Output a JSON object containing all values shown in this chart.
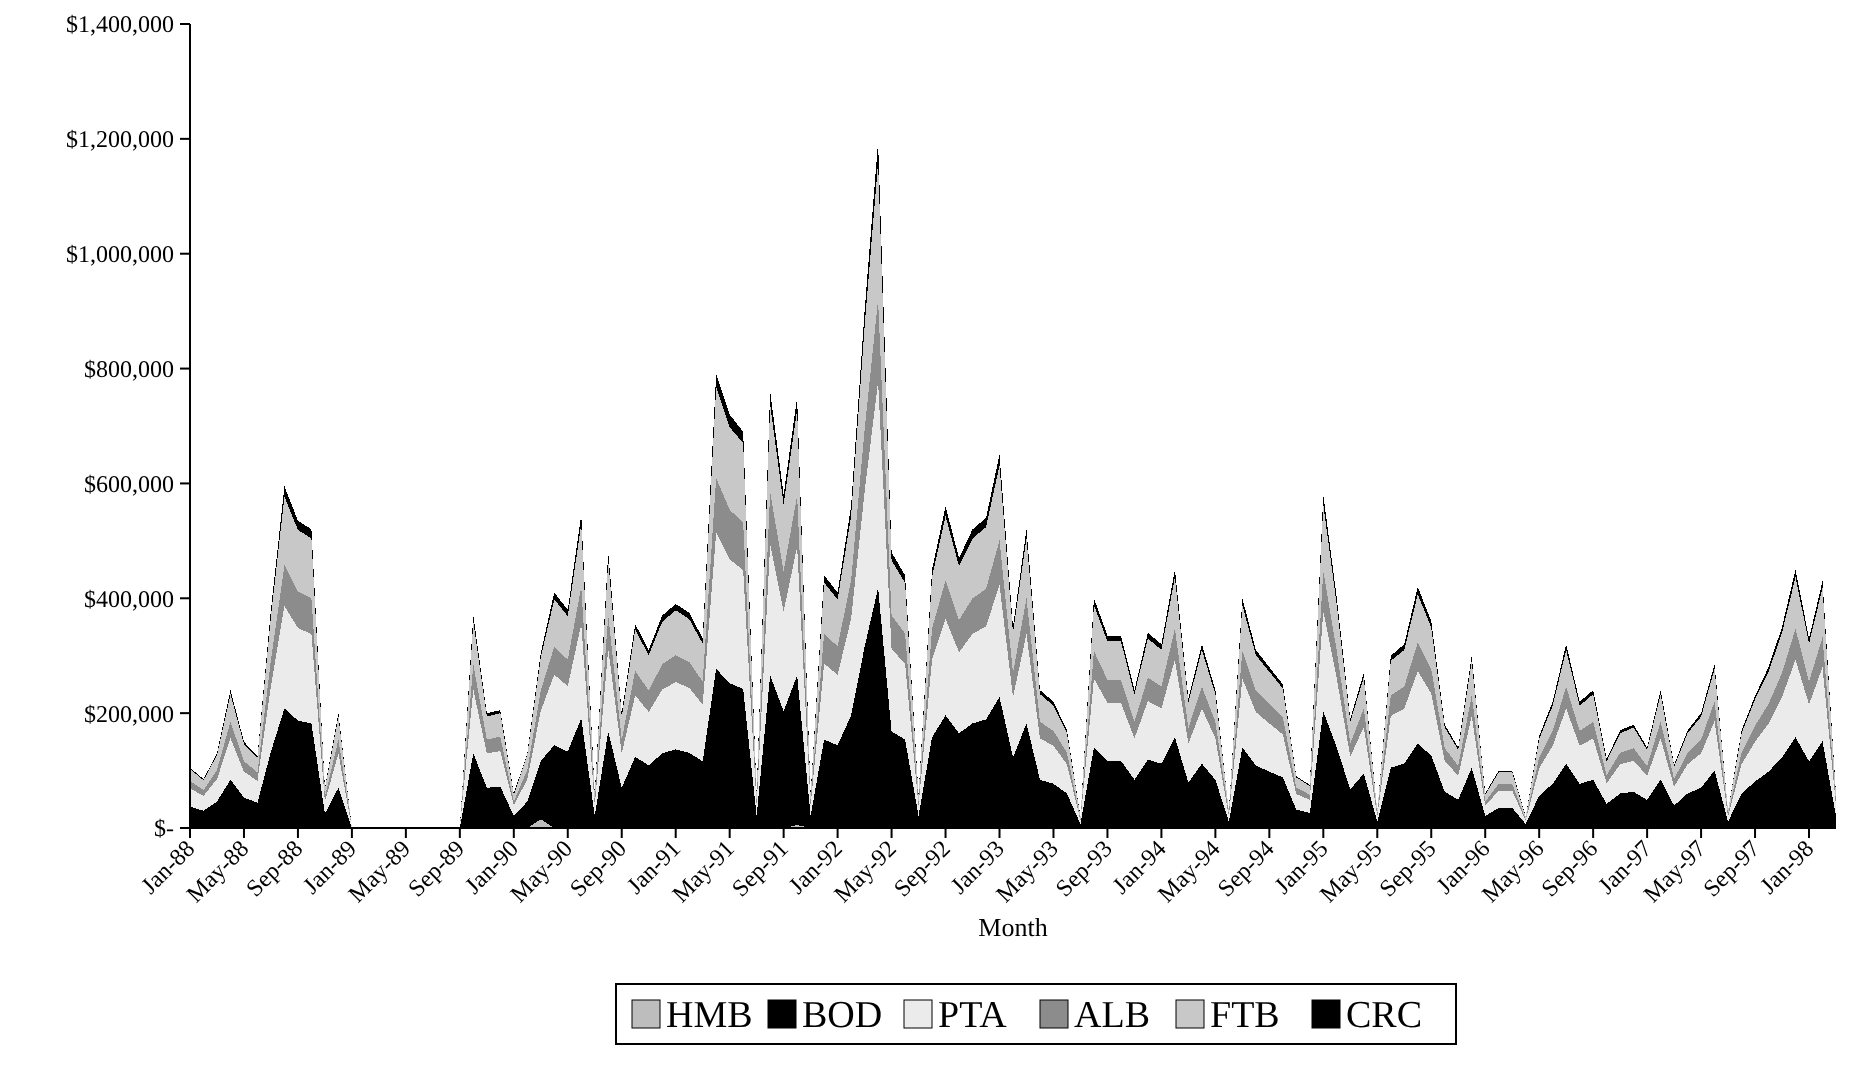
{
  "chart_data": {
    "type": "area",
    "stacked": true,
    "xlabel": "Month",
    "legend": "bottom",
    "grid": false,
    "categories": [
      "Jan-88",
      null,
      null,
      null,
      "May-88",
      null,
      null,
      null,
      "Sep-88",
      null,
      null,
      null,
      "Jan-89",
      null,
      null,
      null,
      "May-89",
      null,
      null,
      null,
      "Sep-89",
      null,
      null,
      null,
      "Jan-90",
      null,
      null,
      null,
      "May-90",
      null,
      null,
      null,
      "Sep-90",
      null,
      null,
      null,
      "Jan-91",
      null,
      null,
      null,
      "May-91",
      null,
      null,
      null,
      "Sep-91",
      null,
      null,
      null,
      "Jan-92",
      null,
      null,
      null,
      "May-92",
      null,
      null,
      null,
      "Sep-92",
      null,
      null,
      null,
      "Jan-93",
      null,
      null,
      null,
      "May-93",
      null,
      null,
      null,
      "Sep-93",
      null,
      null,
      null,
      "Jan-94",
      null,
      null,
      null,
      "May-94",
      null,
      null,
      null,
      "Sep-94",
      null,
      null,
      null,
      "Jan-95",
      null,
      null,
      null,
      "May-95",
      null,
      null,
      null,
      "Sep-95",
      null,
      null,
      null,
      "Jan-96",
      null,
      null,
      null,
      "May-96",
      null,
      null,
      null,
      "Sep-96",
      null,
      null,
      null,
      "Jan-97",
      null,
      null,
      null,
      "May-97",
      null,
      null,
      null,
      "Sep-97",
      null,
      null,
      null,
      "Jan-98",
      null,
      null
    ],
    "ylim": [
      0,
      1400000
    ],
    "yticks": [
      {
        "value": 0,
        "label": "$-"
      },
      {
        "value": 200000,
        "label": "$200,000"
      },
      {
        "value": 400000,
        "label": "$400,000"
      },
      {
        "value": 600000,
        "label": "$600,000"
      },
      {
        "value": 800000,
        "label": "$800,000"
      },
      {
        "value": 1000000,
        "label": "$1,000,000"
      },
      {
        "value": 1200000,
        "label": "$1,200,000"
      },
      {
        "value": 1400000,
        "label": "$1,400,000"
      }
    ],
    "series": [
      {
        "name": "HMB",
        "color": "#bdbdbd",
        "values": [
          0,
          0,
          0,
          0,
          0,
          0,
          0,
          0,
          0,
          0,
          0,
          0,
          0,
          0,
          0,
          0,
          0,
          0,
          0,
          0,
          0,
          0,
          0,
          0,
          0,
          0,
          15000,
          0,
          0,
          0,
          0,
          0,
          0,
          0,
          0,
          0,
          0,
          0,
          0,
          0,
          0,
          0,
          0,
          0,
          0,
          5000,
          0,
          0,
          0,
          0,
          0,
          0,
          0,
          0,
          0,
          0,
          0,
          0,
          0,
          0,
          0,
          0,
          0,
          0,
          0,
          0,
          0,
          0,
          0,
          0,
          0,
          0,
          0,
          0,
          0,
          0,
          0,
          0,
          0,
          0,
          0,
          0,
          0,
          0,
          0,
          0,
          0,
          0,
          0,
          0,
          0,
          0,
          0,
          0,
          0,
          0,
          0,
          0,
          0,
          0,
          0,
          0,
          0,
          0,
          0,
          0,
          0,
          0,
          0,
          0,
          0,
          0,
          0,
          0,
          0,
          0,
          0,
          0,
          0,
          0,
          0,
          0,
          0
        ]
      },
      {
        "name": "BOD",
        "color": "#000000",
        "values": [
          37000,
          30000,
          46000,
          84000,
          53000,
          44000,
          133000,
          208000,
          187000,
          182000,
          25000,
          70000,
          0,
          0,
          0,
          0,
          0,
          0,
          0,
          0,
          0,
          130000,
          70000,
          72000,
          21000,
          46000,
          102000,
          144000,
          133000,
          191000,
          21000,
          168000,
          70000,
          124000,
          109000,
          130000,
          137000,
          131000,
          116000,
          277000,
          252000,
          242000,
          21000,
          266000,
          203000,
          261000,
          21000,
          154000,
          144000,
          196000,
          315000,
          418000,
          168000,
          154000,
          21000,
          158000,
          196000,
          165000,
          182000,
          189000,
          228000,
          123000,
          182000,
          84000,
          77000,
          60000,
          7000,
          140000,
          117000,
          117000,
          84000,
          119000,
          112000,
          158000,
          79000,
          112000,
          84000,
          11000,
          140000,
          109000,
          98000,
          88000,
          32000,
          26000,
          203000,
          140000,
          67000,
          95000,
          11000,
          105000,
          112000,
          147000,
          126000,
          63000,
          49000,
          105000,
          21000,
          35000,
          35000,
          7000,
          56000,
          77000,
          112000,
          77000,
          84000,
          42000,
          60000,
          63000,
          49000,
          84000,
          39000,
          60000,
          70000,
          100000,
          11000,
          60000,
          81000,
          98000,
          123000,
          158000,
          116000,
          151000,
          21000
        ]
      },
      {
        "name": "PTA",
        "color": "#ebebeb",
        "values": [
          32000,
          26000,
          39000,
          72000,
          45000,
          38000,
          114000,
          179000,
          161000,
          156000,
          21000,
          60000,
          0,
          0,
          0,
          0,
          0,
          0,
          0,
          0,
          0,
          111000,
          60000,
          62000,
          18000,
          39000,
          87000,
          123000,
          114000,
          164000,
          18000,
          144000,
          60000,
          107000,
          93000,
          111000,
          117000,
          113000,
          99000,
          237000,
          216000,
          207000,
          18000,
          228000,
          174000,
          224000,
          18000,
          132000,
          123000,
          168000,
          270000,
          359000,
          144000,
          132000,
          18000,
          135000,
          168000,
          141000,
          156000,
          162000,
          195000,
          105000,
          156000,
          72000,
          66000,
          51000,
          6000,
          120000,
          101000,
          101000,
          72000,
          102000,
          96000,
          135000,
          68000,
          96000,
          72000,
          9000,
          120000,
          93000,
          84000,
          75000,
          27000,
          23000,
          174000,
          120000,
          57000,
          81000,
          9000,
          90000,
          96000,
          126000,
          108000,
          54000,
          42000,
          90000,
          18000,
          30000,
          30000,
          6000,
          48000,
          66000,
          96000,
          66000,
          72000,
          36000,
          51000,
          54000,
          42000,
          72000,
          33000,
          51000,
          60000,
          86000,
          9000,
          51000,
          69000,
          84000,
          105000,
          135000,
          99000,
          129000,
          18000
        ]
      },
      {
        "name": "ALB",
        "color": "#8c8c8c",
        "values": [
          13000,
          10000,
          16000,
          29000,
          18000,
          15000,
          46000,
          71000,
          64000,
          62000,
          8000,
          24000,
          0,
          0,
          0,
          0,
          0,
          0,
          0,
          0,
          0,
          44000,
          24000,
          25000,
          7000,
          16000,
          35000,
          49000,
          46000,
          65000,
          7000,
          58000,
          24000,
          43000,
          37000,
          44000,
          47000,
          45000,
          40000,
          95000,
          86000,
          83000,
          7000,
          91000,
          70000,
          89000,
          7000,
          53000,
          49000,
          67000,
          108000,
          143000,
          58000,
          53000,
          7000,
          54000,
          67000,
          56000,
          62000,
          65000,
          78000,
          42000,
          62000,
          29000,
          26000,
          20000,
          2000,
          48000,
          40000,
          40000,
          29000,
          41000,
          38000,
          54000,
          27000,
          38000,
          29000,
          4000,
          48000,
          37000,
          34000,
          30000,
          11000,
          9000,
          70000,
          48000,
          23000,
          32000,
          4000,
          36000,
          38000,
          50000,
          43000,
          22000,
          17000,
          36000,
          7000,
          12000,
          12000,
          2000,
          19000,
          26000,
          38000,
          26000,
          29000,
          14000,
          20000,
          22000,
          17000,
          29000,
          13000,
          20000,
          24000,
          34000,
          4000,
          20000,
          28000,
          34000,
          42000,
          54000,
          40000,
          52000,
          7000
        ]
      },
      {
        "name": "FTB",
        "color": "#c8c8c8",
        "values": [
          21000,
          17000,
          26000,
          48000,
          30000,
          25000,
          76000,
          119000,
          107000,
          104000,
          14000,
          40000,
          0,
          0,
          0,
          0,
          0,
          0,
          0,
          0,
          0,
          74000,
          40000,
          41000,
          12000,
          26000,
          58000,
          82000,
          76000,
          109000,
          12000,
          96000,
          40000,
          71000,
          62000,
          74000,
          78000,
          75000,
          66000,
          158000,
          144000,
          138000,
          12000,
          152000,
          116000,
          149000,
          12000,
          88000,
          82000,
          112000,
          180000,
          239000,
          96000,
          88000,
          12000,
          90000,
          112000,
          94000,
          104000,
          108000,
          130000,
          70000,
          104000,
          48000,
          44000,
          34000,
          4000,
          80000,
          67000,
          67000,
          48000,
          68000,
          64000,
          90000,
          45000,
          64000,
          48000,
          6000,
          80000,
          62000,
          56000,
          50000,
          18000,
          15000,
          116000,
          80000,
          38000,
          54000,
          6000,
          60000,
          64000,
          84000,
          72000,
          36000,
          28000,
          60000,
          12000,
          20000,
          20000,
          4000,
          32000,
          44000,
          64000,
          44000,
          48000,
          24000,
          34000,
          36000,
          28000,
          48000,
          22000,
          34000,
          40000,
          57000,
          6000,
          34000,
          46000,
          56000,
          70000,
          90000,
          66000,
          86000,
          12000
        ]
      },
      {
        "name": "CRC",
        "color": "#000000",
        "values": [
          2000,
          2000,
          3000,
          7000,
          4000,
          3000,
          11000,
          18000,
          16000,
          16000,
          2000,
          6000,
          0,
          0,
          0,
          0,
          0,
          0,
          0,
          0,
          0,
          11000,
          6000,
          5000,
          2000,
          3000,
          8000,
          12000,
          11000,
          16000,
          2000,
          14000,
          6000,
          10000,
          9000,
          11000,
          11000,
          11000,
          9000,
          23000,
          22000,
          20000,
          2000,
          23000,
          17000,
          22000,
          2000,
          13000,
          12000,
          17000,
          27000,
          36000,
          14000,
          13000,
          2000,
          13000,
          17000,
          14000,
          16000,
          16000,
          19000,
          10000,
          16000,
          7000,
          7000,
          5000,
          1000,
          12000,
          10000,
          10000,
          7000,
          10000,
          10000,
          13000,
          6000,
          10000,
          7000,
          0,
          12000,
          9000,
          8000,
          7000,
          2000,
          2000,
          17000,
          12000,
          5000,
          8000,
          0,
          9000,
          10000,
          13000,
          11000,
          5000,
          4000,
          9000,
          2000,
          3000,
          3000,
          1000,
          5000,
          7000,
          10000,
          7000,
          7000,
          4000,
          5000,
          5000,
          4000,
          7000,
          3000,
          5000,
          6000,
          8000,
          0,
          5000,
          6000,
          8000,
          10000,
          13000,
          9000,
          12000,
          2000
        ]
      }
    ]
  }
}
